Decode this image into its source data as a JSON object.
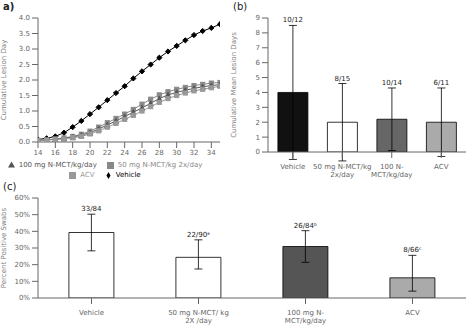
{
  "chart_data": [
    {
      "type": "line",
      "title": "a)",
      "ylabel": "Cumulative Lesion Day",
      "x": [
        14,
        15,
        16,
        17,
        18,
        19,
        20,
        21,
        22,
        23,
        24,
        25,
        26,
        27,
        28,
        29,
        30,
        31,
        32,
        33,
        34,
        35
      ],
      "series": [
        {
          "name": "Vehicle",
          "color": "black",
          "marker": "diamond",
          "values": [
            0.08,
            0.12,
            0.18,
            0.3,
            0.48,
            0.68,
            0.9,
            1.12,
            1.35,
            1.58,
            1.8,
            2.05,
            2.28,
            2.5,
            2.72,
            2.92,
            3.1,
            3.28,
            3.45,
            3.58,
            3.68,
            3.8
          ]
        },
        {
          "name": "50 mg N-MCT/kg 2x/day",
          "color": "#888888",
          "marker": "square",
          "values": [
            0.05,
            0.07,
            0.1,
            0.13,
            0.18,
            0.25,
            0.35,
            0.48,
            0.62,
            0.76,
            0.9,
            1.05,
            1.22,
            1.38,
            1.52,
            1.62,
            1.7,
            1.76,
            1.82,
            1.86,
            1.9,
            1.92
          ]
        },
        {
          "name": "100 mg N-MCT/kg/day",
          "color": "#555555",
          "marker": "triangle",
          "values": [
            0.05,
            0.07,
            0.09,
            0.12,
            0.16,
            0.22,
            0.3,
            0.42,
            0.55,
            0.68,
            0.82,
            0.96,
            1.1,
            1.25,
            1.4,
            1.52,
            1.6,
            1.67,
            1.73,
            1.78,
            1.82,
            1.85
          ]
        },
        {
          "name": "ACV",
          "color": "#999999",
          "marker": "square",
          "values": [
            0.05,
            0.06,
            0.08,
            0.1,
            0.14,
            0.18,
            0.26,
            0.36,
            0.48,
            0.6,
            0.73,
            0.86,
            1.0,
            1.14,
            1.28,
            1.4,
            1.5,
            1.58,
            1.65,
            1.7,
            1.75,
            1.8
          ]
        }
      ],
      "xlim": [
        14,
        35
      ],
      "xticks": [
        14,
        16,
        18,
        20,
        22,
        24,
        26,
        28,
        30,
        32,
        34
      ],
      "ylim": [
        0,
        4.0
      ],
      "yticks": [
        {
          "value": 0,
          "label": "0.0"
        },
        0.5,
        {
          "value": 1,
          "label": "1.0"
        },
        1.5,
        {
          "value": 2,
          "label": "2.0"
        },
        2.5,
        {
          "value": 3,
          "label": "3.0"
        },
        3.5,
        {
          "value": 4,
          "label": "4.0"
        }
      ],
      "legend": "bottom",
      "grid": false
    },
    {
      "type": "bar",
      "title": "(b)",
      "ylabel": "Cumulative Mean Lesion Days",
      "categories": [
        "Vehicle",
        "50 mg N-MCT/kg\n2x/day",
        "100 N-\nMCT/kg/day",
        "ACV"
      ],
      "values": [
        4.0,
        2.0,
        2.2,
        2.0
      ],
      "errors": [
        4.5,
        2.6,
        2.1,
        2.3
      ],
      "colors": [
        "#111111",
        "#ffffff",
        "#666666",
        "#aaaaaa"
      ],
      "annotations": [
        "10/12",
        "8/15",
        "10/14",
        "6/11"
      ],
      "ylim": [
        0,
        9
      ],
      "yticks": [
        0,
        1,
        2,
        3,
        4,
        5,
        6,
        7,
        8,
        9
      ],
      "grid": false
    },
    {
      "type": "bar",
      "title": "(c)",
      "ylabel": "Percent Positive Swabs",
      "categories": [
        "Vehicle",
        "50 mg N-MCT/ kg\n2X /day",
        "100 mg N-\nMCT/kg/day",
        "ACV"
      ],
      "values": [
        39.3,
        24.4,
        30.9,
        12.1
      ],
      "errors_lower": [
        11.0,
        7.0,
        9.5,
        8.0
      ],
      "errors_upper": [
        11.0,
        10.5,
        9.5,
        13.5
      ],
      "colors": [
        "white",
        "white",
        "#555555",
        "#aaaaaa"
      ],
      "annotations": [
        "33/84",
        "22/90ᵃ",
        "26/84ᵇ",
        "8/66ᶜ"
      ],
      "ylim": [
        0,
        60
      ],
      "yticks": [
        {
          "value": 0,
          "label": "0%"
        },
        {
          "value": 10,
          "label": "10%"
        },
        {
          "value": 20,
          "label": "20%"
        },
        {
          "value": 30,
          "label": "30%"
        },
        {
          "value": 40,
          "label": "40%"
        },
        {
          "value": 50,
          "label": "50%"
        },
        {
          "value": 60,
          "label": "60%"
        }
      ],
      "grid": false
    }
  ]
}
